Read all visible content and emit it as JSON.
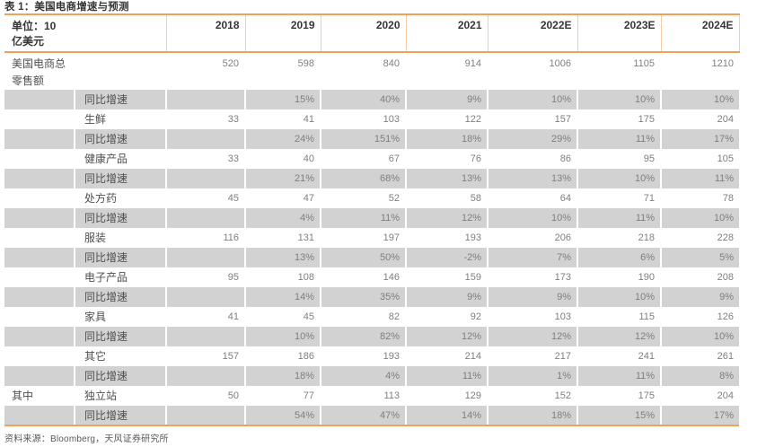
{
  "page": {
    "title": "表 1：美国电商增速与预测",
    "source": "资料来源：Bloomberg，天风证券研究所"
  },
  "colors": {
    "accent_line": "#F2A158",
    "header_divider": "#F8CDA6",
    "shaded_row": "#D2D2D2",
    "number_text": "#7F7F7F",
    "label_text": "#4F4F4F",
    "header_text": "#363636"
  },
  "table": {
    "unit_label_line1": "单位：10",
    "unit_label_line2": "亿美元",
    "columns": [
      "2018",
      "2019",
      "2020",
      "2021",
      "2022E",
      "2023E",
      "2024E"
    ],
    "rows": [
      {
        "group": "美国电商总零售额",
        "label": "",
        "values": [
          "520",
          "598",
          "840",
          "914",
          "1006",
          "1105",
          "1210"
        ],
        "shaded": false,
        "tall": true
      },
      {
        "group": "",
        "label": "同比增速",
        "values": [
          "",
          "15%",
          "40%",
          "9%",
          "10%",
          "10%",
          "10%"
        ],
        "shaded": true,
        "tall": false
      },
      {
        "group": "",
        "label": "生鲜",
        "values": [
          "33",
          "41",
          "103",
          "122",
          "157",
          "175",
          "204"
        ],
        "shaded": false,
        "tall": false
      },
      {
        "group": "",
        "label": "同比增速",
        "values": [
          "",
          "24%",
          "151%",
          "18%",
          "29%",
          "11%",
          "17%"
        ],
        "shaded": true,
        "tall": false
      },
      {
        "group": "",
        "label": "健康产品",
        "values": [
          "33",
          "40",
          "67",
          "76",
          "86",
          "95",
          "105"
        ],
        "shaded": false,
        "tall": false
      },
      {
        "group": "",
        "label": "同比增速",
        "values": [
          "",
          "21%",
          "68%",
          "13%",
          "13%",
          "10%",
          "11%"
        ],
        "shaded": true,
        "tall": false
      },
      {
        "group": "",
        "label": "处方药",
        "values": [
          "45",
          "47",
          "52",
          "58",
          "64",
          "71",
          "78"
        ],
        "shaded": false,
        "tall": false
      },
      {
        "group": "",
        "label": "同比增速",
        "values": [
          "",
          "4%",
          "11%",
          "12%",
          "10%",
          "11%",
          "10%"
        ],
        "shaded": true,
        "tall": false
      },
      {
        "group": "",
        "label": "服装",
        "values": [
          "116",
          "131",
          "197",
          "193",
          "206",
          "218",
          "228"
        ],
        "shaded": false,
        "tall": false
      },
      {
        "group": "",
        "label": "同比增速",
        "values": [
          "",
          "13%",
          "50%",
          "-2%",
          "7%",
          "6%",
          "5%"
        ],
        "shaded": true,
        "tall": false
      },
      {
        "group": "",
        "label": "电子产品",
        "values": [
          "95",
          "108",
          "146",
          "159",
          "173",
          "190",
          "208"
        ],
        "shaded": false,
        "tall": false
      },
      {
        "group": "",
        "label": "同比增速",
        "values": [
          "",
          "14%",
          "35%",
          "9%",
          "9%",
          "10%",
          "9%"
        ],
        "shaded": true,
        "tall": false
      },
      {
        "group": "",
        "label": "家具",
        "values": [
          "41",
          "45",
          "82",
          "92",
          "103",
          "115",
          "126"
        ],
        "shaded": false,
        "tall": false
      },
      {
        "group": "",
        "label": "同比增速",
        "values": [
          "",
          "10%",
          "82%",
          "12%",
          "12%",
          "12%",
          "10%"
        ],
        "shaded": true,
        "tall": false
      },
      {
        "group": "",
        "label": "其它",
        "values": [
          "157",
          "186",
          "193",
          "214",
          "217",
          "241",
          "261"
        ],
        "shaded": false,
        "tall": false
      },
      {
        "group": "",
        "label": "同比增速",
        "values": [
          "",
          "18%",
          "4%",
          "11%",
          "1%",
          "11%",
          "8%"
        ],
        "shaded": true,
        "tall": false
      },
      {
        "group": "其中",
        "label": "独立站",
        "values": [
          "50",
          "77",
          "113",
          "129",
          "152",
          "175",
          "204"
        ],
        "shaded": false,
        "tall": false
      },
      {
        "group": "",
        "label": "同比增速",
        "values": [
          "",
          "54%",
          "47%",
          "14%",
          "18%",
          "15%",
          "17%"
        ],
        "shaded": true,
        "tall": false
      }
    ]
  }
}
